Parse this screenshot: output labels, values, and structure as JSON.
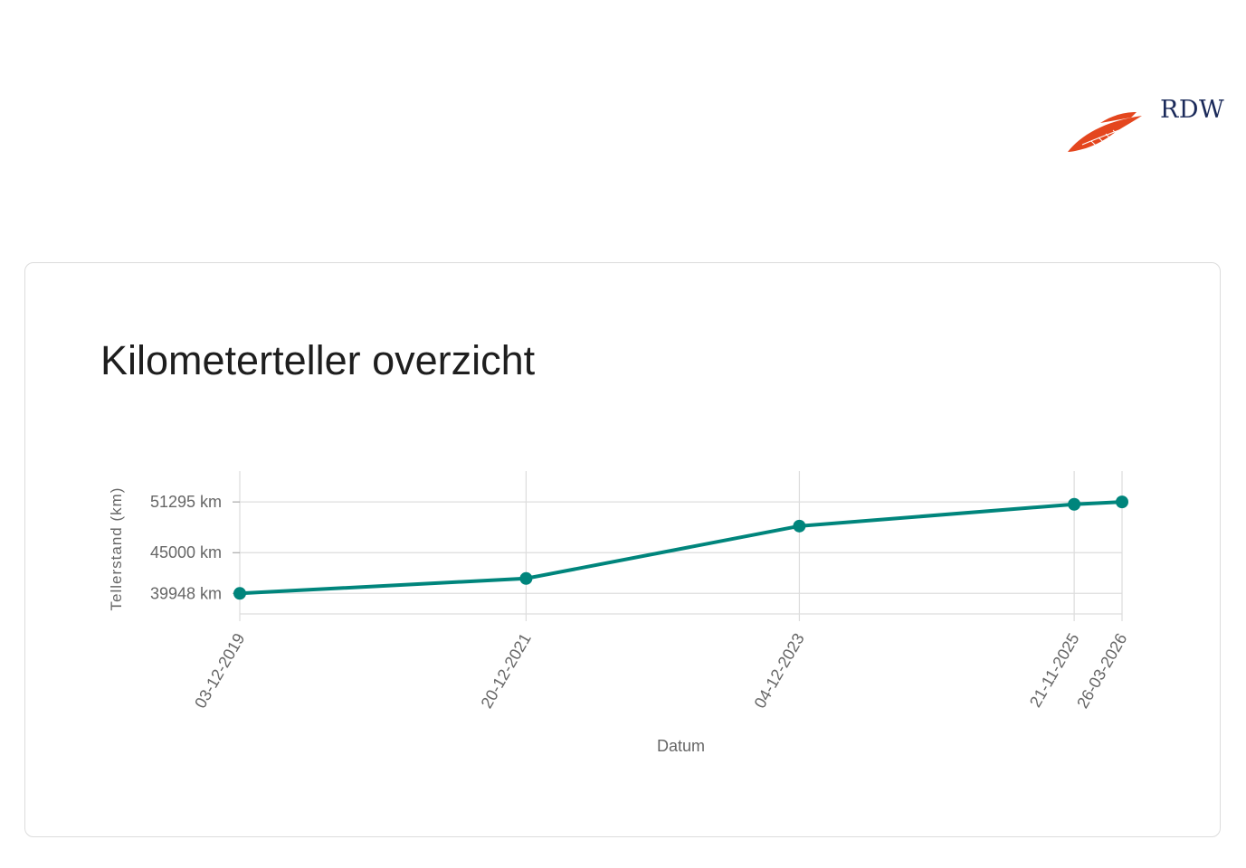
{
  "header": {
    "logo_text": "RDW",
    "logo_color": "#e4461e",
    "logo_text_color": "#1b2a5a"
  },
  "card": {
    "title": "Kilometerteller overzicht"
  },
  "chart_data": {
    "type": "line",
    "xlabel": "Datum",
    "ylabel": "Tellerstand (km)",
    "x": [
      "03-12-2019",
      "20-12-2021",
      "04-12-2023",
      "21-11-2025",
      "26-03-2026"
    ],
    "x_days": [
      0,
      748,
      1462,
      2180,
      2305
    ],
    "yticks": [
      {
        "value": 39948,
        "label": "39948 km"
      },
      {
        "value": 45000,
        "label": "45000 km"
      },
      {
        "value": 51295,
        "label": "51295 km"
      }
    ],
    "series": [
      {
        "values": [
          39948,
          41800,
          48300,
          51000,
          51295
        ],
        "color": "#00857c"
      }
    ],
    "ylim": [
      37400,
      54000
    ],
    "grid": true,
    "legend": "none"
  }
}
